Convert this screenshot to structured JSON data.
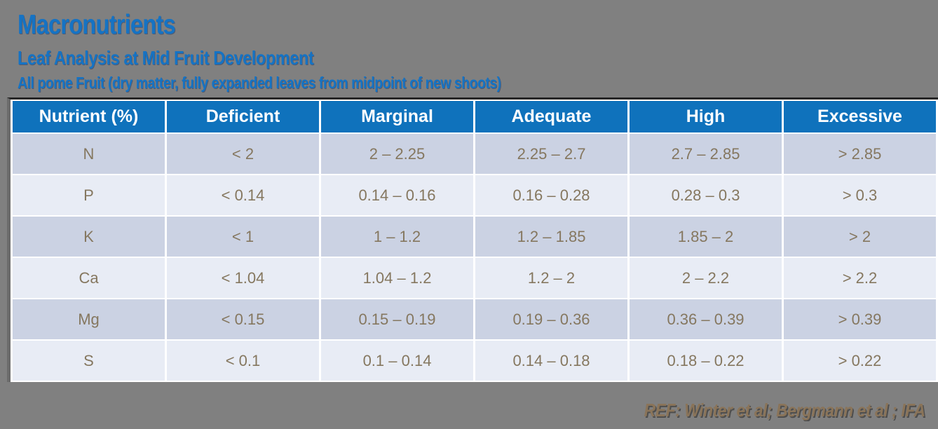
{
  "page": {
    "background_color": "#808080",
    "title": "Macronutrients",
    "subtitle": "Leaf Analysis at Mid Fruit Development",
    "subtitle2": "All pome Fruit (dry matter, fully expanded leaves from midpoint of new shoots)",
    "title_color": "#1573C4"
  },
  "table": {
    "header_bg_color": "#0F72BC",
    "header_text_color": "#FFFFFF",
    "row_color_dark": "#CBD2E3",
    "row_color_light": "#E8ECF5",
    "cell_text_color": "#85775F",
    "columns": [
      "Nutrient (%)",
      "Deficient",
      "Marginal",
      "Adequate",
      "High",
      "Excessive"
    ],
    "rows": [
      {
        "nutrient": "N",
        "values": [
          "< 2",
          "2 – 2.25",
          "2.25 – 2.7",
          "2.7 – 2.85",
          "> 2.85"
        ]
      },
      {
        "nutrient": "P",
        "values": [
          "< 0.14",
          "0.14 – 0.16",
          "0.16 – 0.28",
          "0.28 – 0.3",
          "> 0.3"
        ]
      },
      {
        "nutrient": "K",
        "values": [
          "< 1",
          "1 – 1.2",
          "1.2 – 1.85",
          "1.85 – 2",
          "> 2"
        ]
      },
      {
        "nutrient": "Ca",
        "values": [
          "< 1.04",
          "1.04 – 1.2",
          "1.2 – 2",
          "2 – 2.2",
          "> 2.2"
        ]
      },
      {
        "nutrient": "Mg",
        "values": [
          "< 0.15",
          "0.15 – 0.19",
          "0.19 – 0.36",
          "0.36 – 0.39",
          "> 0.39"
        ]
      },
      {
        "nutrient": "S",
        "values": [
          "< 0.1",
          "0.1 – 0.14",
          "0.14 – 0.18",
          "0.18 – 0.22",
          "> 0.22"
        ]
      }
    ]
  },
  "footer": {
    "reference": "REF: Winter et al; Bergmann et al ; IFA"
  }
}
